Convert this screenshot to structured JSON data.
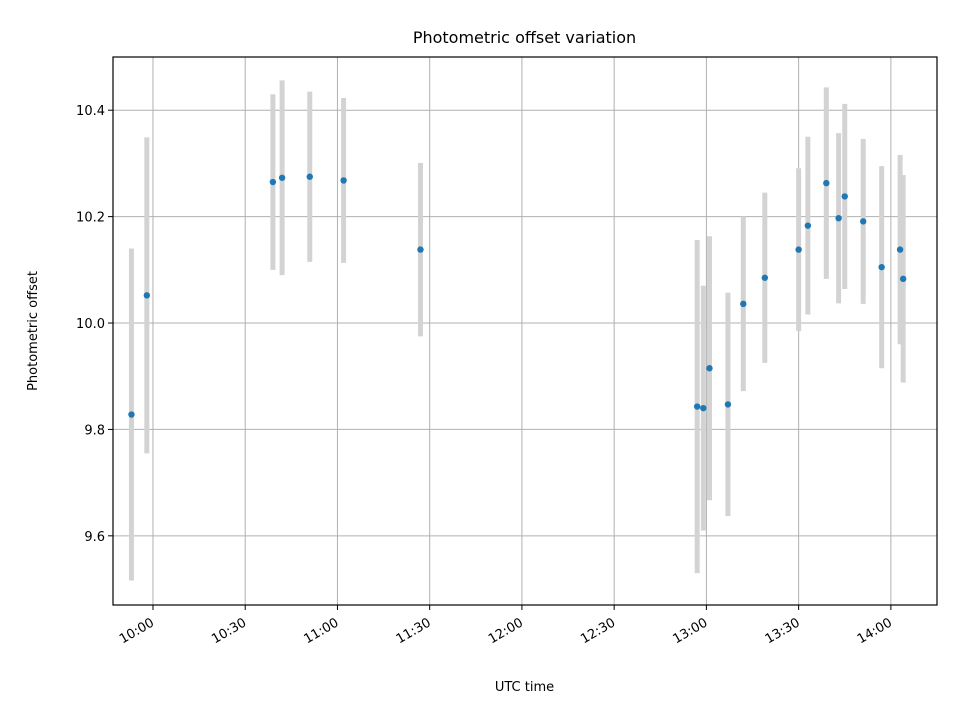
{
  "chart_data": {
    "type": "scatter",
    "title": "Photometric offset variation",
    "xlabel": "UTC time",
    "ylabel": "Photometric offset",
    "xlim": [
      "09:47",
      "14:15"
    ],
    "ylim": [
      9.47,
      10.5
    ],
    "x_ticks": [
      "10:00",
      "10:30",
      "11:00",
      "11:30",
      "12:00",
      "12:30",
      "13:00",
      "13:30",
      "14:00"
    ],
    "y_ticks": [
      9.6,
      9.8,
      10.0,
      10.2,
      10.4
    ],
    "y_tick_labels": [
      "9.6",
      "9.8",
      "10.0",
      "10.2",
      "10.4"
    ],
    "grid": true,
    "colors": {
      "points": "#1f77b4",
      "errorbars": "#d3d3d3",
      "grid": "#b0b0b0"
    },
    "points": [
      {
        "x": "09:53",
        "y": 9.828,
        "yerr": 0.312
      },
      {
        "x": "09:58",
        "y": 10.052,
        "yerr": 0.297
      },
      {
        "x": "10:39",
        "y": 10.265,
        "yerr": 0.165
      },
      {
        "x": "10:42",
        "y": 10.273,
        "yerr": 0.183
      },
      {
        "x": "10:51",
        "y": 10.275,
        "yerr": 0.16
      },
      {
        "x": "11:02",
        "y": 10.268,
        "yerr": 0.155
      },
      {
        "x": "11:27",
        "y": 10.138,
        "yerr": 0.163
      },
      {
        "x": "12:57",
        "y": 9.843,
        "yerr": 0.313
      },
      {
        "x": "12:59",
        "y": 9.84,
        "yerr": 0.23
      },
      {
        "x": "13:01",
        "y": 9.915,
        "yerr": 0.248
      },
      {
        "x": "13:07",
        "y": 9.847,
        "yerr": 0.21
      },
      {
        "x": "13:12",
        "y": 10.036,
        "yerr": 0.164
      },
      {
        "x": "13:19",
        "y": 10.085,
        "yerr": 0.16
      },
      {
        "x": "13:30",
        "y": 10.138,
        "yerr": 0.153
      },
      {
        "x": "13:33",
        "y": 10.183,
        "yerr": 0.167
      },
      {
        "x": "13:39",
        "y": 10.263,
        "yerr": 0.18
      },
      {
        "x": "13:43",
        "y": 10.197,
        "yerr": 0.16
      },
      {
        "x": "13:45",
        "y": 10.238,
        "yerr": 0.174
      },
      {
        "x": "13:51",
        "y": 10.191,
        "yerr": 0.155
      },
      {
        "x": "13:57",
        "y": 10.105,
        "yerr": 0.19
      },
      {
        "x": "14:03",
        "y": 10.138,
        "yerr": 0.178
      },
      {
        "x": "14:04",
        "y": 10.083,
        "yerr": 0.195
      }
    ]
  }
}
